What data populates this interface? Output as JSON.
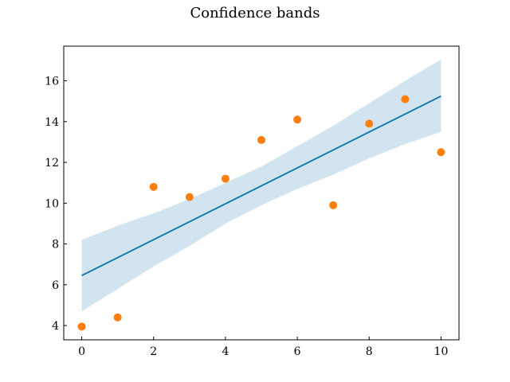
{
  "chart_data": {
    "type": "line",
    "title": "Confidence bands",
    "xlabel": "",
    "ylabel": "",
    "xlim": [
      -0.5,
      10.5
    ],
    "ylim": [
      3.3,
      17.7
    ],
    "xticks": [
      0,
      2,
      4,
      6,
      8,
      10
    ],
    "yticks": [
      4,
      6,
      8,
      10,
      12,
      14,
      16
    ],
    "grid": false,
    "fit_line": {
      "x": [
        0,
        10
      ],
      "y": [
        6.45,
        15.25
      ],
      "color": "#1f77b4"
    },
    "band": {
      "x": [
        0,
        1,
        2,
        3,
        4,
        5,
        6,
        7,
        8,
        9,
        10
      ],
      "upper": [
        8.2,
        8.9,
        9.5,
        10.2,
        11.0,
        11.8,
        12.8,
        13.8,
        14.9,
        16.0,
        17.05
      ],
      "lower": [
        4.7,
        5.8,
        6.9,
        7.9,
        9.0,
        9.9,
        10.7,
        11.4,
        12.2,
        12.9,
        13.5
      ],
      "color": "#1f77b4",
      "opacity": 0.2
    },
    "points": {
      "x": [
        0,
        1,
        2,
        3,
        4,
        5,
        6,
        7,
        8,
        9,
        10
      ],
      "y": [
        3.95,
        4.4,
        10.8,
        10.3,
        11.2,
        13.1,
        14.1,
        9.9,
        13.9,
        15.1,
        12.5
      ],
      "color": "#ff7f0e"
    }
  }
}
